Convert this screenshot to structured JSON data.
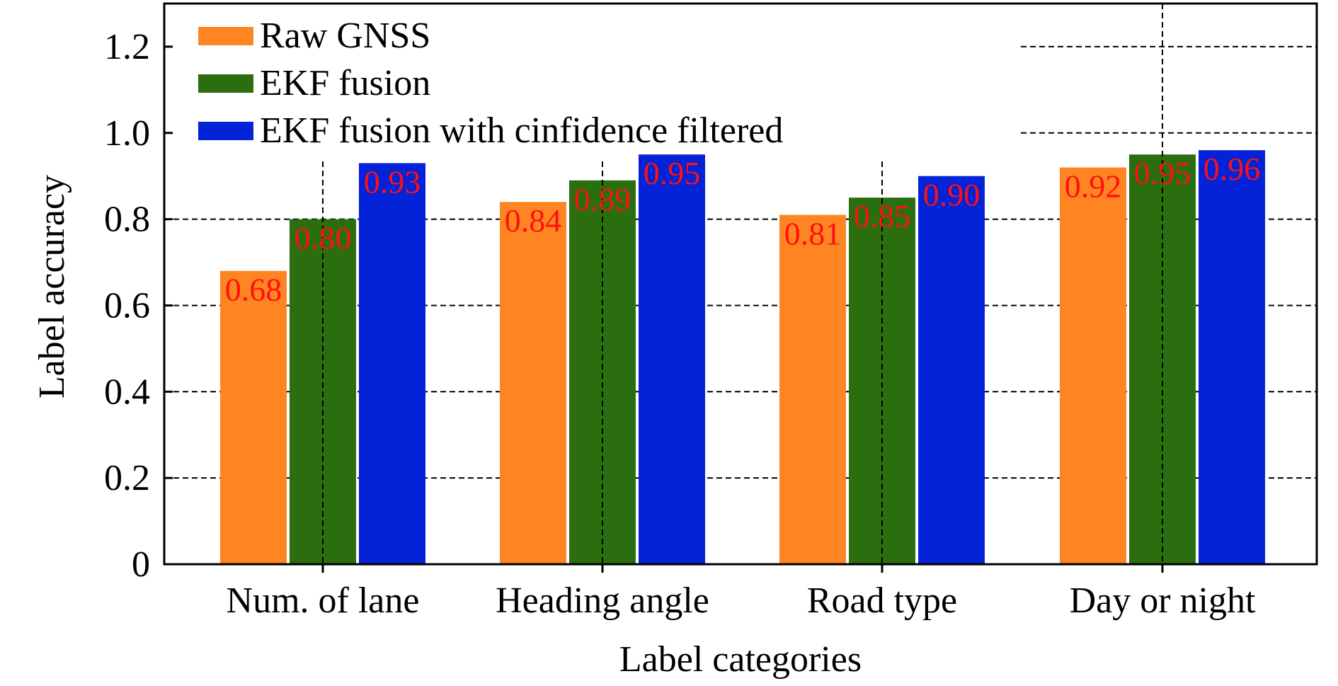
{
  "chart_data": {
    "type": "bar",
    "xlabel": "Label categories",
    "ylabel": "Label accuracy",
    "ylim": [
      0,
      1.3
    ],
    "yticks": [
      0,
      0.2,
      0.4,
      0.6,
      0.8,
      1.0,
      1.2
    ],
    "ytick_labels": [
      "0",
      "0.2",
      "0.4",
      "0.6",
      "0.8",
      "1.0",
      "1.2"
    ],
    "grid": "dashed",
    "legend_position": "top-left",
    "categories": [
      "Num. of lane",
      "Heading angle",
      "Road type",
      "Day or night"
    ],
    "series": [
      {
        "name": "Raw GNSS",
        "color": "#ff8522",
        "values": [
          0.68,
          0.84,
          0.81,
          0.92
        ],
        "labels": [
          "0.68",
          "0.84",
          "0.81",
          "0.92"
        ]
      },
      {
        "name": "EKF fusion",
        "color": "#2a6e10",
        "values": [
          0.8,
          0.89,
          0.85,
          0.95
        ],
        "labels": [
          "0.80",
          "0.89",
          "0.85",
          "0.95"
        ]
      },
      {
        "name": "EKF fusion with cinfidence filtered",
        "color": "#0422d8",
        "values": [
          0.93,
          0.95,
          0.9,
          0.96
        ],
        "labels": [
          "0.93",
          "0.95",
          "0.90",
          "0.96"
        ]
      }
    ],
    "data_label_color": "#ff1010"
  }
}
